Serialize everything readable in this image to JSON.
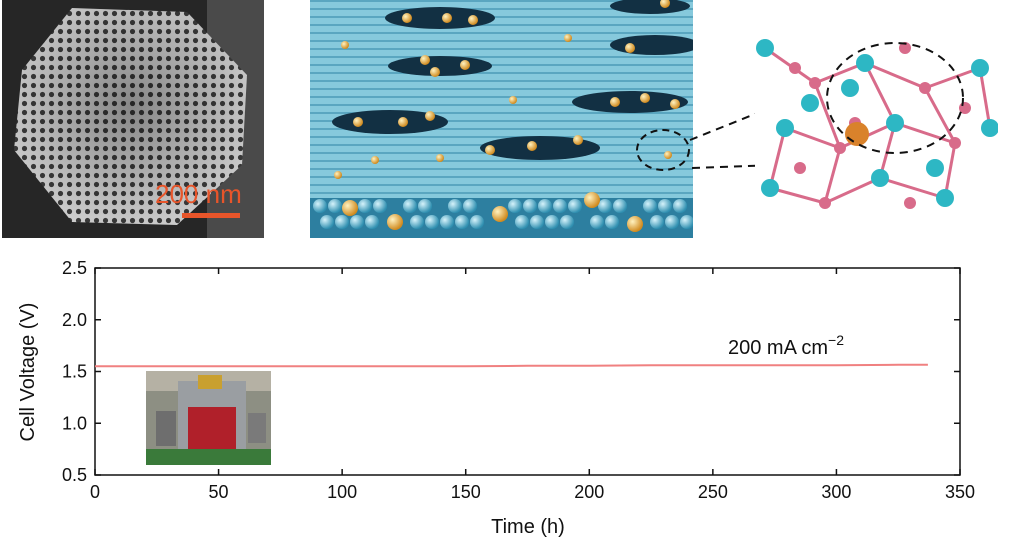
{
  "sem_image": {
    "scale_bar_label": "200 nm"
  },
  "chart_data": {
    "type": "line",
    "title": "",
    "xlabel": "Time (h)",
    "ylabel": "Cell Voltage (V)",
    "xlim": [
      0,
      350
    ],
    "ylim": [
      0.5,
      2.5
    ],
    "x_ticks": [
      0,
      50,
      100,
      150,
      200,
      250,
      300,
      350
    ],
    "y_ticks": [
      0.5,
      1.0,
      1.5,
      2.0,
      2.5
    ],
    "x_tick_labels": [
      "0",
      "50",
      "100",
      "150",
      "200",
      "250",
      "300",
      "350"
    ],
    "y_tick_labels": [
      "0.5",
      "1.0",
      "1.5",
      "2.0",
      "2.5"
    ],
    "grid": false,
    "annotation": "200 mA cm",
    "annotation_superscript": "−2",
    "series": [
      {
        "color": "#f08080",
        "x": [
          0,
          25,
          50,
          75,
          100,
          125,
          150,
          175,
          200,
          225,
          250,
          275,
          300,
          325,
          337
        ],
        "y": [
          1.55,
          1.55,
          1.55,
          1.55,
          1.55,
          1.55,
          1.55,
          1.555,
          1.555,
          1.56,
          1.56,
          1.56,
          1.56,
          1.565,
          1.565
        ]
      }
    ]
  }
}
